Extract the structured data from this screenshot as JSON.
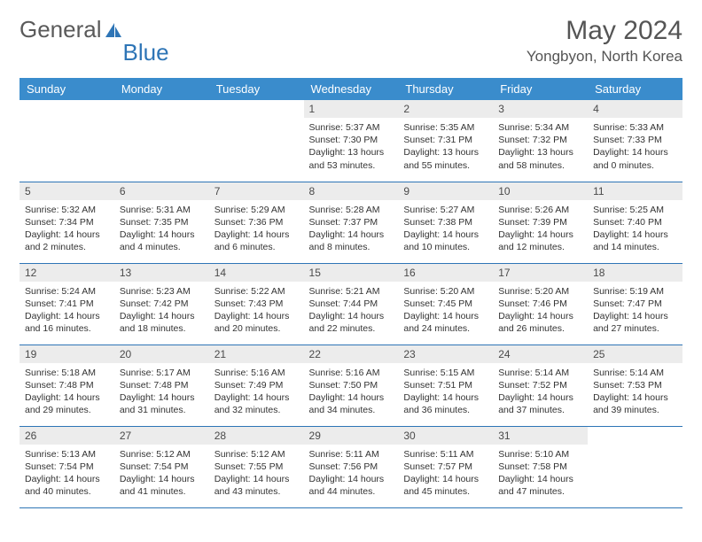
{
  "logo": {
    "part1": "General",
    "part2": "Blue"
  },
  "title": "May 2024",
  "location": "Yongbyon, North Korea",
  "colors": {
    "header_bg": "#3a8ccc",
    "header_text": "#ffffff",
    "daynum_bg": "#ececec",
    "border": "#2e75b6",
    "body_text": "#333333",
    "title_text": "#555555"
  },
  "weekdays": [
    "Sunday",
    "Monday",
    "Tuesday",
    "Wednesday",
    "Thursday",
    "Friday",
    "Saturday"
  ],
  "blank_lead": 3,
  "days": [
    {
      "n": 1,
      "sr": "5:37 AM",
      "ss": "7:30 PM",
      "dl": "13 hours and 53 minutes"
    },
    {
      "n": 2,
      "sr": "5:35 AM",
      "ss": "7:31 PM",
      "dl": "13 hours and 55 minutes"
    },
    {
      "n": 3,
      "sr": "5:34 AM",
      "ss": "7:32 PM",
      "dl": "13 hours and 58 minutes"
    },
    {
      "n": 4,
      "sr": "5:33 AM",
      "ss": "7:33 PM",
      "dl": "14 hours and 0 minutes"
    },
    {
      "n": 5,
      "sr": "5:32 AM",
      "ss": "7:34 PM",
      "dl": "14 hours and 2 minutes"
    },
    {
      "n": 6,
      "sr": "5:31 AM",
      "ss": "7:35 PM",
      "dl": "14 hours and 4 minutes"
    },
    {
      "n": 7,
      "sr": "5:29 AM",
      "ss": "7:36 PM",
      "dl": "14 hours and 6 minutes"
    },
    {
      "n": 8,
      "sr": "5:28 AM",
      "ss": "7:37 PM",
      "dl": "14 hours and 8 minutes"
    },
    {
      "n": 9,
      "sr": "5:27 AM",
      "ss": "7:38 PM",
      "dl": "14 hours and 10 minutes"
    },
    {
      "n": 10,
      "sr": "5:26 AM",
      "ss": "7:39 PM",
      "dl": "14 hours and 12 minutes"
    },
    {
      "n": 11,
      "sr": "5:25 AM",
      "ss": "7:40 PM",
      "dl": "14 hours and 14 minutes"
    },
    {
      "n": 12,
      "sr": "5:24 AM",
      "ss": "7:41 PM",
      "dl": "14 hours and 16 minutes"
    },
    {
      "n": 13,
      "sr": "5:23 AM",
      "ss": "7:42 PM",
      "dl": "14 hours and 18 minutes"
    },
    {
      "n": 14,
      "sr": "5:22 AM",
      "ss": "7:43 PM",
      "dl": "14 hours and 20 minutes"
    },
    {
      "n": 15,
      "sr": "5:21 AM",
      "ss": "7:44 PM",
      "dl": "14 hours and 22 minutes"
    },
    {
      "n": 16,
      "sr": "5:20 AM",
      "ss": "7:45 PM",
      "dl": "14 hours and 24 minutes"
    },
    {
      "n": 17,
      "sr": "5:20 AM",
      "ss": "7:46 PM",
      "dl": "14 hours and 26 minutes"
    },
    {
      "n": 18,
      "sr": "5:19 AM",
      "ss": "7:47 PM",
      "dl": "14 hours and 27 minutes"
    },
    {
      "n": 19,
      "sr": "5:18 AM",
      "ss": "7:48 PM",
      "dl": "14 hours and 29 minutes"
    },
    {
      "n": 20,
      "sr": "5:17 AM",
      "ss": "7:48 PM",
      "dl": "14 hours and 31 minutes"
    },
    {
      "n": 21,
      "sr": "5:16 AM",
      "ss": "7:49 PM",
      "dl": "14 hours and 32 minutes"
    },
    {
      "n": 22,
      "sr": "5:16 AM",
      "ss": "7:50 PM",
      "dl": "14 hours and 34 minutes"
    },
    {
      "n": 23,
      "sr": "5:15 AM",
      "ss": "7:51 PM",
      "dl": "14 hours and 36 minutes"
    },
    {
      "n": 24,
      "sr": "5:14 AM",
      "ss": "7:52 PM",
      "dl": "14 hours and 37 minutes"
    },
    {
      "n": 25,
      "sr": "5:14 AM",
      "ss": "7:53 PM",
      "dl": "14 hours and 39 minutes"
    },
    {
      "n": 26,
      "sr": "5:13 AM",
      "ss": "7:54 PM",
      "dl": "14 hours and 40 minutes"
    },
    {
      "n": 27,
      "sr": "5:12 AM",
      "ss": "7:54 PM",
      "dl": "14 hours and 41 minutes"
    },
    {
      "n": 28,
      "sr": "5:12 AM",
      "ss": "7:55 PM",
      "dl": "14 hours and 43 minutes"
    },
    {
      "n": 29,
      "sr": "5:11 AM",
      "ss": "7:56 PM",
      "dl": "14 hours and 44 minutes"
    },
    {
      "n": 30,
      "sr": "5:11 AM",
      "ss": "7:57 PM",
      "dl": "14 hours and 45 minutes"
    },
    {
      "n": 31,
      "sr": "5:10 AM",
      "ss": "7:58 PM",
      "dl": "14 hours and 47 minutes"
    }
  ],
  "labels": {
    "sunrise": "Sunrise:",
    "sunset": "Sunset:",
    "daylight": "Daylight:"
  }
}
